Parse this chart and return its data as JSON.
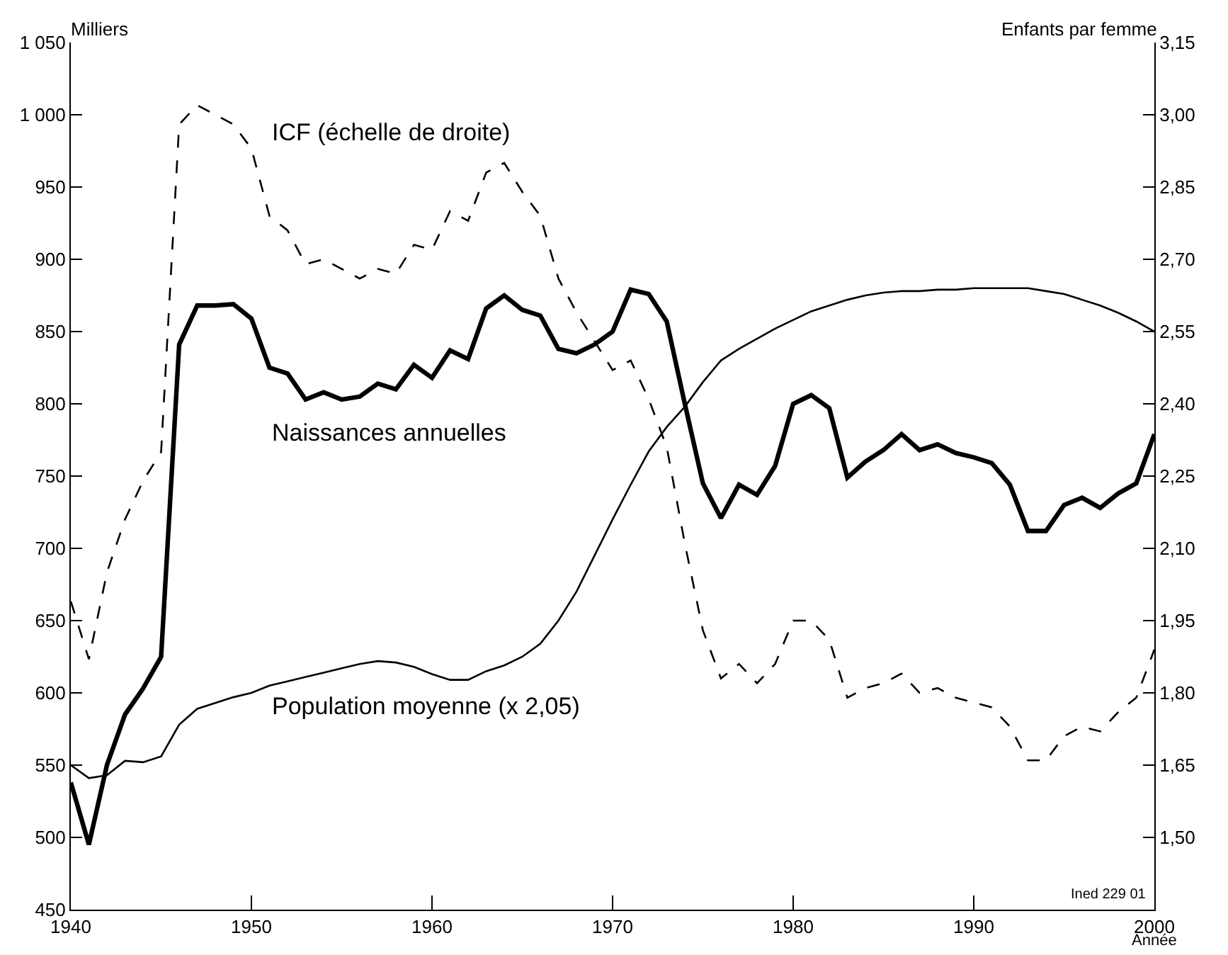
{
  "chart_data": {
    "type": "line",
    "ylabel": "Milliers",
    "y2label": "Enfants par femme",
    "xlabel": "Année",
    "x": [
      1940,
      1941,
      1942,
      1943,
      1944,
      1945,
      1946,
      1947,
      1948,
      1949,
      1950,
      1951,
      1952,
      1953,
      1954,
      1955,
      1956,
      1957,
      1958,
      1959,
      1960,
      1961,
      1962,
      1963,
      1964,
      1965,
      1966,
      1967,
      1968,
      1969,
      1970,
      1971,
      1972,
      1973,
      1974,
      1975,
      1976,
      1977,
      1978,
      1979,
      1980,
      1981,
      1982,
      1983,
      1984,
      1985,
      1986,
      1987,
      1988,
      1989,
      1990,
      1991,
      1992,
      1993,
      1994,
      1995,
      1996,
      1997,
      1998,
      1999,
      2000
    ],
    "series": [
      {
        "name": "ICF (échelle de droite)",
        "color": "#000000",
        "axis": "y2",
        "line_style": "dashed",
        "values": [
          1.99,
          1.87,
          2.05,
          2.16,
          2.24,
          2.3,
          2.98,
          3.02,
          3.0,
          2.98,
          2.93,
          2.79,
          2.76,
          2.69,
          2.7,
          2.68,
          2.66,
          2.68,
          2.67,
          2.73,
          2.72,
          2.8,
          2.78,
          2.88,
          2.9,
          2.84,
          2.79,
          2.66,
          2.59,
          2.53,
          2.47,
          2.49,
          2.41,
          2.31,
          2.11,
          1.93,
          1.83,
          1.86,
          1.82,
          1.86,
          1.95,
          1.95,
          1.91,
          1.79,
          1.81,
          1.82,
          1.84,
          1.8,
          1.81,
          1.79,
          1.78,
          1.77,
          1.73,
          1.66,
          1.66,
          1.71,
          1.73,
          1.72,
          1.76,
          1.79,
          1.89
        ]
      },
      {
        "name": "Naissances annuelles",
        "color": "#000000",
        "line_style": "solid",
        "values": [
          538,
          495,
          550,
          585,
          603,
          625,
          841,
          868,
          868,
          869,
          859,
          825,
          821,
          803,
          808,
          803,
          805,
          814,
          810,
          827,
          818,
          837,
          831,
          866,
          875,
          865,
          861,
          838,
          835,
          841,
          850,
          879,
          876,
          857,
          800,
          745,
          721,
          744,
          737,
          757,
          800,
          806,
          797,
          749,
          760,
          768,
          779,
          768,
          772,
          766,
          763,
          759,
          744,
          712,
          712,
          730,
          735,
          728,
          738,
          745,
          779
        ]
      },
      {
        "name": "Population moyenne (x 2,05)",
        "color": "#000000",
        "line_style": "solid",
        "values": [
          550,
          541,
          543,
          553,
          552,
          556,
          578,
          589,
          593,
          597,
          600,
          605,
          608,
          611,
          614,
          617,
          620,
          622,
          621,
          618,
          613,
          609,
          609,
          615,
          619,
          625,
          634,
          650,
          670,
          695,
          720,
          744,
          767,
          784,
          798,
          815,
          830,
          838,
          845,
          852,
          858,
          864,
          868,
          872,
          875,
          877,
          878,
          878,
          879,
          879,
          880,
          880,
          880,
          880,
          878,
          876,
          872,
          868,
          863,
          857,
          850
        ]
      }
    ],
    "xlim": [
      1940,
      2000
    ],
    "xticks": [
      1940,
      1950,
      1960,
      1970,
      1980,
      1990,
      2000
    ],
    "ylim": [
      450,
      1050
    ],
    "yticks": [
      450,
      500,
      550,
      600,
      650,
      700,
      750,
      800,
      850,
      900,
      950,
      {
        "value": 1000,
        "label": "1 000"
      },
      {
        "value": 1050,
        "label": "1 050"
      }
    ],
    "y2lim": [
      1.35,
      3.15
    ],
    "y2ticks": [
      {
        "value": 1.5,
        "label": "1,50"
      },
      {
        "value": 1.65,
        "label": "1,65"
      },
      {
        "value": 1.8,
        "label": "1,80"
      },
      {
        "value": 1.95,
        "label": "1,95"
      },
      {
        "value": 2.1,
        "label": "2,10"
      },
      {
        "value": 2.25,
        "label": "2,25"
      },
      {
        "value": 2.4,
        "label": "2,40"
      },
      {
        "value": 2.55,
        "label": "2,55"
      },
      {
        "value": 2.7,
        "label": "2,70"
      },
      {
        "value": 2.85,
        "label": "2,85"
      },
      {
        "value": 3.0,
        "label": "3,00"
      },
      {
        "value": 3.15,
        "label": "3,15"
      }
    ],
    "grid": false,
    "legend": false,
    "marker": "none",
    "annotations": [
      "Ined 229 01"
    ]
  }
}
